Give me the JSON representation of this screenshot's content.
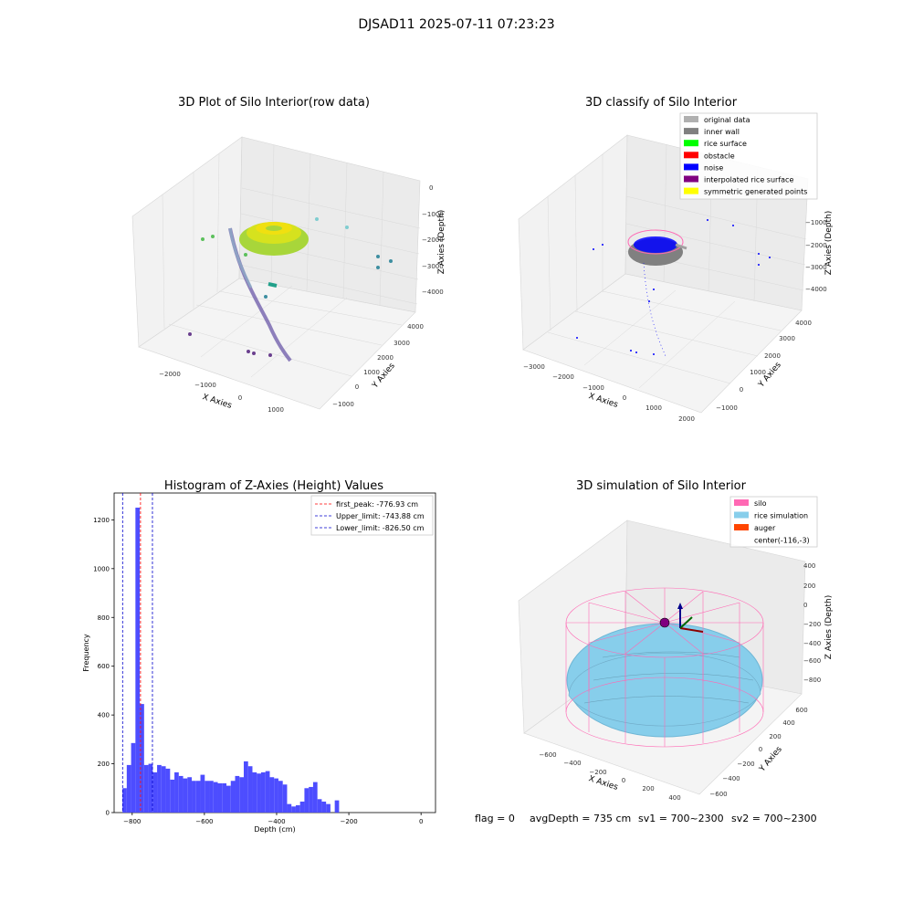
{
  "suptitle": "DJSAD11 2025-07-11 07:23:23",
  "status": {
    "flag": "flag = 0",
    "avg_depth": "avgDepth = 735 cm",
    "sv1": "sv1 = 700~2300",
    "sv2": "sv2 = 700~2300"
  },
  "colors": {
    "hist_bar": "#4d4dff",
    "first_peak": "#ff0000",
    "limits": "#0000cc",
    "silo": "#ff69b4",
    "rice_sim": "#87ceeb",
    "auger": "#ff4500",
    "inner_wall": "#808080"
  },
  "chart_data": [
    {
      "type": "scatter",
      "title": "3D Plot of Silo Interior(row data)",
      "xlabel": "X Axies",
      "ylabel": "Y Axies",
      "zlabel": "Z Axies (Depth)",
      "xticks": [
        "−2000",
        "−1000",
        "0",
        "1000"
      ],
      "yticks": [
        "−1000",
        "0",
        "1000",
        "2000",
        "3000",
        "4000"
      ],
      "zticks": [
        "0",
        "−1000",
        "−2000",
        "−3000",
        "−4000"
      ]
    },
    {
      "type": "scatter",
      "title": "3D classify of Silo Interior",
      "xlabel": "X Axies",
      "ylabel": "Y Axies",
      "zlabel": "Z Axies (Depth)",
      "xticks": [
        "−3000",
        "−2000",
        "−1000",
        "0",
        "1000",
        "2000"
      ],
      "yticks": [
        "−1000",
        "0",
        "1000",
        "2000",
        "3000",
        "4000"
      ],
      "zticks": [
        "−1000",
        "−2000",
        "−3000",
        "−4000"
      ],
      "legend": [
        {
          "label": "original data",
          "color": "#b0b0b0"
        },
        {
          "label": "inner wall",
          "color": "#808080"
        },
        {
          "label": "rice surface",
          "color": "#00ff00"
        },
        {
          "label": "obstacle",
          "color": "#ff0000"
        },
        {
          "label": "noise",
          "color": "#0000ff"
        },
        {
          "label": "interpolated rice surface",
          "color": "#800080"
        },
        {
          "label": "symmetric generated points",
          "color": "#ffff00"
        }
      ]
    },
    {
      "type": "bar",
      "title": "Histogram of Z-Axies (Height) Values",
      "xlabel": "Depth (cm)",
      "ylabel": "Frequency",
      "xlim": [
        -850,
        40
      ],
      "ylim": [
        0,
        1310
      ],
      "xticks": [
        -800,
        -600,
        -400,
        -200,
        0
      ],
      "xtick_labels": [
        "−800",
        "−600",
        "−400",
        "−200",
        "0"
      ],
      "yticks": [
        0,
        200,
        400,
        600,
        800,
        1000,
        1200
      ],
      "bin_start": -827,
      "bin_width": 12,
      "values": [
        100,
        195,
        285,
        1250,
        445,
        195,
        200,
        165,
        195,
        190,
        180,
        135,
        165,
        150,
        140,
        145,
        130,
        130,
        155,
        130,
        130,
        125,
        120,
        120,
        110,
        130,
        150,
        145,
        210,
        190,
        165,
        160,
        165,
        170,
        145,
        140,
        130,
        115,
        35,
        25,
        30,
        45,
        100,
        105,
        125,
        55,
        45,
        35,
        0,
        50
      ],
      "lines": [
        {
          "label": "first_peak: -776.93 cm",
          "x": -776.93,
          "color": "#ff0000"
        },
        {
          "label": "Upper_limit: -743.88 cm",
          "x": -743.88,
          "color": "#0000cc"
        },
        {
          "label": "Lower_limit: -826.50 cm",
          "x": -826.5,
          "color": "#0000cc"
        }
      ]
    },
    {
      "type": "scatter",
      "title": "3D simulation of Silo Interior",
      "xlabel": "X Axies",
      "ylabel": "Y Axies",
      "zlabel": "Z Axies (Depth)",
      "xticks": [
        "−600",
        "−400",
        "−200",
        "0",
        "200",
        "400"
      ],
      "yticks": [
        "−600",
        "−400",
        "−200",
        "0",
        "200",
        "400",
        "600"
      ],
      "zticks": [
        "400",
        "200",
        "0",
        "−200",
        "−400",
        "−600",
        "−800"
      ],
      "legend": [
        {
          "label": "silo",
          "color": "#ff69b4"
        },
        {
          "label": "rice simulation",
          "color": "#87ceeb"
        },
        {
          "label": "auger",
          "color": "#ff4500"
        },
        {
          "label": "center(-116,-3)",
          "color": ""
        }
      ]
    }
  ]
}
